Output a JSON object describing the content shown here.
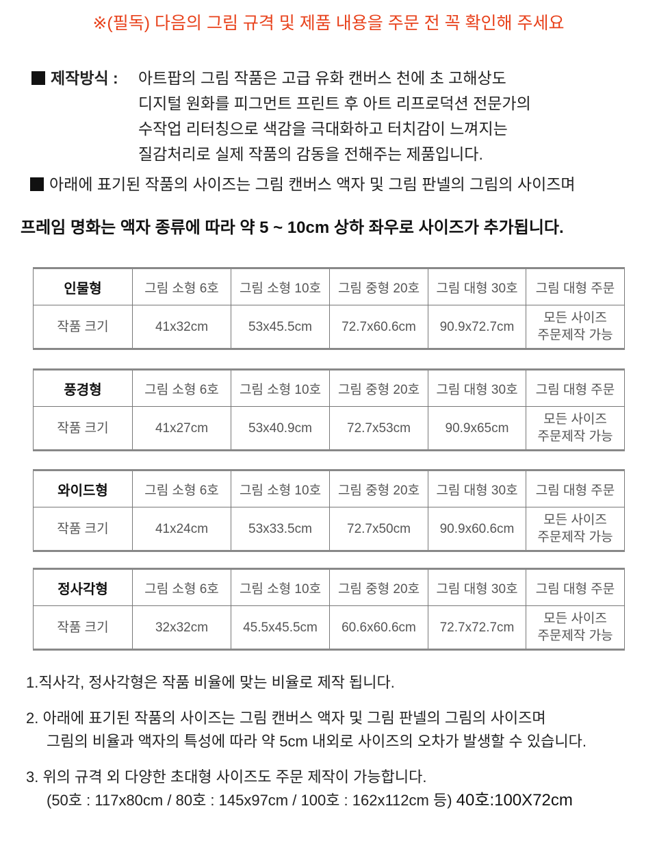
{
  "notice": "※(필독) 다음의 그림 규격 및 제품 내용을 주문 전 꼭 확인해 주세요",
  "method": {
    "label": "제작방식 :",
    "lines": [
      "아트팝의 그림 작품은 고급 유화 캔버스 천에 초 고해상도",
      "디지털 원화를 피그먼트 프린트 후 아트 리프로덕션 전문가의",
      "수작업 리터칭으로 색감을 극대화하고 터치감이 느껴지는",
      "질감처리로 실제 작품의 감동을 전해주는 제품입니다."
    ]
  },
  "size_note": "아래에 표기된 작품의 사이즈는 그림 캔버스 액자 및 그림 판넬의 그림의 사이즈며",
  "frame_note": "프레임 명화는 액자 종류에 따라 약 5 ~ 10cm 상하 좌우로 사이즈가 추가됩니다.",
  "tables": [
    {
      "type": "인물형",
      "headers": [
        "그림 소형 6호",
        "그림 소형 10호",
        "그림 중형 20호",
        "그림 대형 30호",
        "그림 대형 주문"
      ],
      "row_label": "작품 크기",
      "sizes": [
        "41x32cm",
        "53x45.5cm",
        "72.7x60.6cm",
        "90.9x72.7cm"
      ],
      "custom": [
        "모든 사이즈",
        "주문제작 가능"
      ]
    },
    {
      "type": "풍경형",
      "headers": [
        "그림 소형 6호",
        "그림 소형 10호",
        "그림 중형 20호",
        "그림 대형 30호",
        "그림 대형 주문"
      ],
      "row_label": "작품 크기",
      "sizes": [
        "41x27cm",
        "53x40.9cm",
        "72.7x53cm",
        "90.9x65cm"
      ],
      "custom": [
        "모든 사이즈",
        "주문제작 가능"
      ]
    },
    {
      "type": "와이드형",
      "headers": [
        "그림 소형 6호",
        "그림 소형 10호",
        "그림 중형 20호",
        "그림 대형 30호",
        "그림 대형 주문"
      ],
      "row_label": "작품 크기",
      "sizes": [
        "41x24cm",
        "53x33.5cm",
        "72.7x50cm",
        "90.9x60.6cm"
      ],
      "custom": [
        "모든 사이즈",
        "주문제작 가능"
      ]
    },
    {
      "type": "정사각형",
      "headers": [
        "그림 소형 6호",
        "그림 소형 10호",
        "그림 중형 20호",
        "그림 대형 30호",
        "그림 대형 주문"
      ],
      "row_label": "작품 크기",
      "sizes": [
        "32x32cm",
        "45.5x45.5cm",
        "60.6x60.6cm",
        "72.7x72.7cm"
      ],
      "custom": [
        "모든 사이즈",
        "주문제작 가능"
      ]
    }
  ],
  "footnotes": {
    "n1": "1.직사각, 정사각형은 작품 비율에 맞는 비율로 제작 됩니다.",
    "n2a": "2. 아래에 표기된 작품의 사이즈는 그림 캔버스 액자 및 그림 판넬의 그림의 사이즈며",
    "n2b": "그림의 비율과 액자의 특성에 따라 약 5cm 내외로 사이즈의 오차가 발생할 수 있습니다.",
    "n3a": "3. 위의 규격 외 다양한 초대형 사이즈도 주문 제작이 가능합니다.",
    "n3b": "(50호 : 117x80cm / 80호 : 145x97cm / 100호 : 162x112cm 등)",
    "n3c": "40호:100X72cm"
  },
  "colors": {
    "notice": "#e8421c"
  }
}
